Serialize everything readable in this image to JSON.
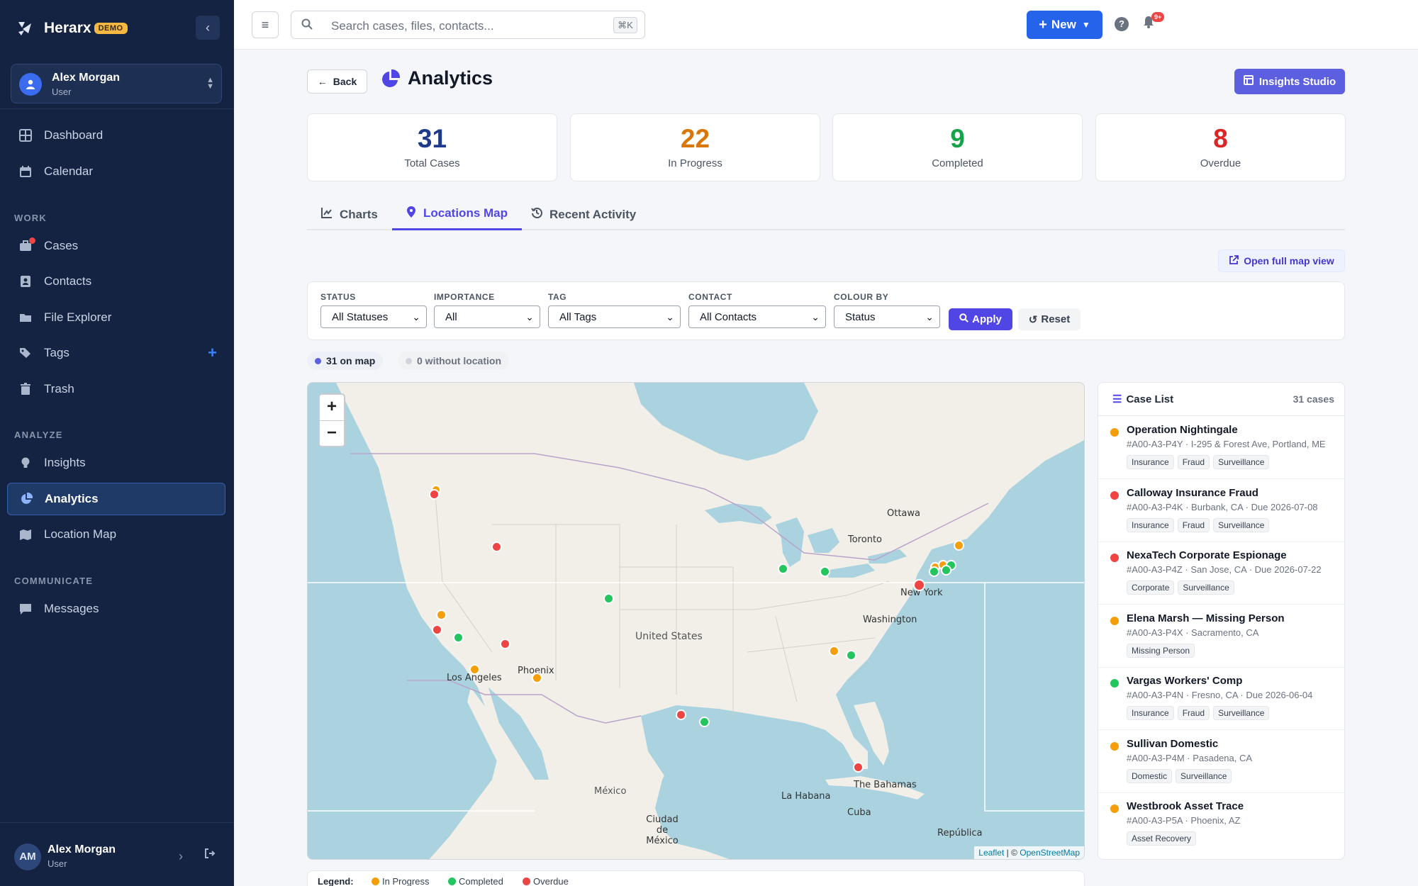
{
  "app": {
    "name": "Herarx",
    "badge": "DEMO"
  },
  "user": {
    "name": "Alex Morgan",
    "role": "User",
    "initials": "AM"
  },
  "sidebar": {
    "main_items": [
      {
        "label": "Dashboard",
        "icon": "dashboard-icon"
      },
      {
        "label": "Calendar",
        "icon": "calendar-icon"
      }
    ],
    "sections": [
      {
        "label": "WORK",
        "items": [
          {
            "label": "Cases",
            "icon": "briefcase-icon",
            "notification_dot": true
          },
          {
            "label": "Contacts",
            "icon": "contacts-icon"
          },
          {
            "label": "File Explorer",
            "icon": "folder-icon"
          },
          {
            "label": "Tags",
            "icon": "tags-icon",
            "add_button": true
          },
          {
            "label": "Trash",
            "icon": "trash-icon"
          }
        ]
      },
      {
        "label": "ANALYZE",
        "items": [
          {
            "label": "Insights",
            "icon": "lightbulb-icon"
          },
          {
            "label": "Analytics",
            "icon": "pie-chart-icon",
            "active": true
          },
          {
            "label": "Location Map",
            "icon": "map-icon"
          }
        ]
      },
      {
        "label": "COMMUNICATE",
        "items": [
          {
            "label": "Messages",
            "icon": "message-icon"
          }
        ]
      }
    ]
  },
  "topbar": {
    "search_placeholder": "Search cases, files, contacts...",
    "search_shortcut": "⌘K",
    "new_label": "New",
    "notification_count": "9+"
  },
  "page": {
    "back_label": "Back",
    "title": "Analytics",
    "insights_studio_label": "Insights Studio"
  },
  "stats": [
    {
      "value": "31",
      "label": "Total Cases",
      "color": "#1e3a8a"
    },
    {
      "value": "22",
      "label": "In Progress",
      "color": "#d97706"
    },
    {
      "value": "9",
      "label": "Completed",
      "color": "#16a34a"
    },
    {
      "value": "8",
      "label": "Overdue",
      "color": "#dc2626"
    }
  ],
  "tabs": [
    {
      "label": "Charts",
      "icon": "line-chart-icon"
    },
    {
      "label": "Locations Map",
      "icon": "map-pin-icon",
      "active": true
    },
    {
      "label": "Recent Activity",
      "icon": "history-icon"
    }
  ],
  "open_full_map_label": "Open full map view",
  "filters": {
    "status": {
      "label": "STATUS",
      "value": "All Statuses"
    },
    "importance": {
      "label": "IMPORTANCE",
      "value": "All"
    },
    "tag": {
      "label": "TAG",
      "value": "All Tags"
    },
    "contact": {
      "label": "CONTACT",
      "value": "All Contacts"
    },
    "colour_by": {
      "label": "COLOUR BY",
      "value": "Status"
    },
    "apply_label": "Apply",
    "reset_label": "Reset"
  },
  "map_summary": {
    "on_map": "31 on map",
    "without_location": "0 without location"
  },
  "map": {
    "zoom_in": "+",
    "zoom_out": "−",
    "attribution_leaflet": "Leaflet",
    "attribution_sep": " | © ",
    "attribution_osm": "OpenStreetMap",
    "labels": [
      "Ottawa",
      "Toronto",
      "New York",
      "Washington",
      "United States",
      "Phoenix",
      "Los Angeles",
      "México",
      "Ciudad de México",
      "La Habana",
      "The Bahamas",
      "Cuba",
      "República"
    ],
    "status_colors": {
      "in_progress": "#f59e0b",
      "completed": "#22c55e",
      "overdue": "#ef4444"
    }
  },
  "case_list": {
    "title": "Case List",
    "count": "31 cases",
    "cases": [
      {
        "title": "Operation Nightingale",
        "meta": "#A00-A3-P4Y · I-295 & Forest Ave, Portland, ME",
        "status": "in_progress",
        "tags": [
          "Insurance",
          "Fraud",
          "Surveillance"
        ]
      },
      {
        "title": "Calloway Insurance Fraud",
        "meta": "#A00-A3-P4K · Burbank, CA · Due 2026-07-08",
        "status": "overdue",
        "tags": [
          "Insurance",
          "Fraud",
          "Surveillance"
        ]
      },
      {
        "title": "NexaTech Corporate Espionage",
        "meta": "#A00-A3-P4Z · San Jose, CA · Due 2026-07-22",
        "status": "overdue",
        "tags": [
          "Corporate",
          "Surveillance"
        ]
      },
      {
        "title": "Elena Marsh — Missing Person",
        "meta": "#A00-A3-P4X · Sacramento, CA",
        "status": "in_progress",
        "tags": [
          "Missing Person"
        ]
      },
      {
        "title": "Vargas Workers' Comp",
        "meta": "#A00-A3-P4N · Fresno, CA · Due 2026-06-04",
        "status": "completed",
        "tags": [
          "Insurance",
          "Fraud",
          "Surveillance"
        ]
      },
      {
        "title": "Sullivan Domestic",
        "meta": "#A00-A3-P4M · Pasadena, CA",
        "status": "in_progress",
        "tags": [
          "Domestic",
          "Surveillance"
        ]
      },
      {
        "title": "Westbrook Asset Trace",
        "meta": "#A00-A3-P5A · Phoenix, AZ",
        "status": "in_progress",
        "tags": [
          "Asset Recovery"
        ]
      }
    ]
  },
  "legend": {
    "title": "Legend:",
    "items": [
      {
        "label": "In Progress",
        "color": "#f59e0b"
      },
      {
        "label": "Completed",
        "color": "#22c55e"
      },
      {
        "label": "Overdue",
        "color": "#ef4444"
      }
    ]
  }
}
